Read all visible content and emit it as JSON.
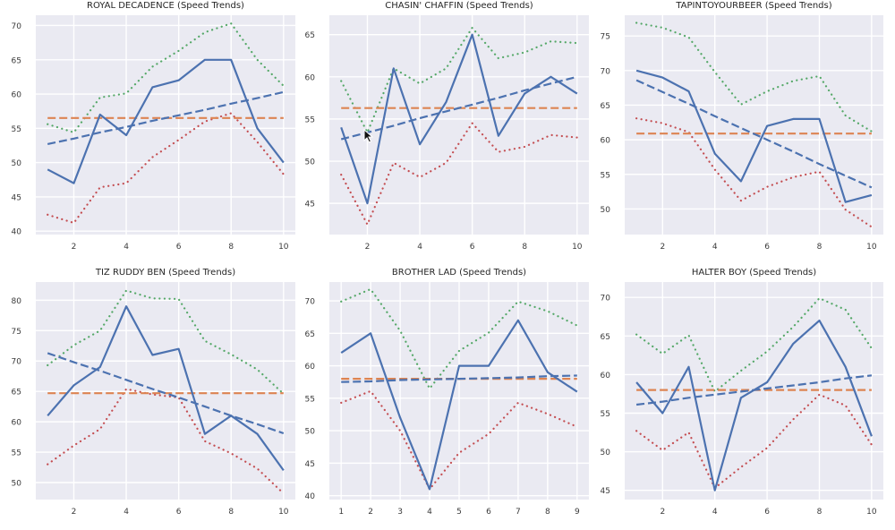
{
  "colors": {
    "plot_bg": "#eaeaf2",
    "grid": "#ffffff",
    "speed": "#4c72b0",
    "mean": "#dd8452",
    "trend": "#4c72b0",
    "upper": "#55a868",
    "lower": "#c44e52"
  },
  "chart_data": [
    {
      "type": "line",
      "title": "ROYAL DECADENCE (Speed Trends)",
      "x": [
        1,
        2,
        3,
        4,
        5,
        6,
        7,
        8,
        9,
        10
      ],
      "xticks": [
        2,
        4,
        6,
        8,
        10
      ],
      "yticks": [
        40,
        45,
        50,
        55,
        60,
        65,
        70
      ],
      "xlim": [
        0.55,
        10.45
      ],
      "ylim": [
        39.5,
        71.5
      ],
      "series": [
        {
          "name": "speed",
          "style": "solid",
          "values": [
            49,
            47,
            57,
            54,
            61,
            62,
            65,
            65,
            55,
            50
          ]
        },
        {
          "name": "mean",
          "style": "dashed",
          "values": [
            56.5,
            56.5,
            56.5,
            56.5,
            56.5,
            56.5,
            56.5,
            56.5,
            56.5,
            56.5
          ]
        },
        {
          "name": "trend",
          "style": "dashed",
          "values": [
            52.7,
            53.5,
            54.4,
            55.2,
            56.1,
            56.9,
            57.7,
            58.6,
            59.4,
            60.3
          ]
        },
        {
          "name": "upper",
          "style": "dotted",
          "values": [
            55.6,
            54.4,
            59.5,
            60.1,
            64.0,
            66.3,
            69.0,
            70.3,
            65.0,
            61.2
          ]
        },
        {
          "name": "lower",
          "style": "dotted",
          "values": [
            42.4,
            41.2,
            46.4,
            47.0,
            50.8,
            53.3,
            56.0,
            57.2,
            53.0,
            48.3
          ]
        }
      ]
    },
    {
      "type": "line",
      "title": "CHASIN' CHAFFIN (Speed Trends)",
      "x": [
        1,
        2,
        3,
        4,
        5,
        6,
        7,
        8,
        9,
        10
      ],
      "xticks": [
        2,
        4,
        6,
        8,
        10
      ],
      "yticks": [
        45,
        50,
        55,
        60,
        65
      ],
      "xlim": [
        0.55,
        10.45
      ],
      "ylim": [
        41.3,
        67.3
      ],
      "series": [
        {
          "name": "speed",
          "style": "solid",
          "values": [
            54,
            45,
            61,
            52,
            57,
            65,
            53,
            58,
            60,
            58
          ]
        },
        {
          "name": "mean",
          "style": "dashed",
          "values": [
            56.3,
            56.3,
            56.3,
            56.3,
            56.3,
            56.3,
            56.3,
            56.3,
            56.3,
            56.3
          ]
        },
        {
          "name": "trend",
          "style": "dashed",
          "values": [
            52.6,
            53.4,
            54.2,
            55.1,
            55.9,
            56.7,
            57.5,
            58.4,
            59.2,
            60.0
          ]
        },
        {
          "name": "upper",
          "style": "dotted",
          "values": [
            59.5,
            53.4,
            61.0,
            59.2,
            61.0,
            65.8,
            62.2,
            62.9,
            64.2,
            64.0
          ]
        },
        {
          "name": "lower",
          "style": "dotted",
          "values": [
            48.4,
            42.5,
            49.8,
            48.1,
            49.8,
            54.5,
            51.1,
            51.7,
            53.1,
            52.8
          ]
        }
      ]
    },
    {
      "type": "line",
      "title": "TAPINTOYOURBEER (Speed Trends)",
      "x": [
        1,
        2,
        3,
        4,
        5,
        6,
        7,
        8,
        9,
        10
      ],
      "xticks": [
        2,
        4,
        6,
        8,
        10
      ],
      "yticks": [
        50,
        55,
        60,
        65,
        70,
        75
      ],
      "xlim": [
        0.55,
        10.45
      ],
      "ylim": [
        46.3,
        78.0
      ],
      "series": [
        {
          "name": "speed",
          "style": "solid",
          "values": [
            70,
            69,
            67,
            58,
            54,
            62,
            63,
            63,
            51,
            52
          ]
        },
        {
          "name": "mean",
          "style": "dashed",
          "values": [
            60.9,
            60.9,
            60.9,
            60.9,
            60.9,
            60.9,
            60.9,
            60.9,
            60.9,
            60.9
          ]
        },
        {
          "name": "trend",
          "style": "dashed",
          "values": [
            68.6,
            66.9,
            65.2,
            63.4,
            61.7,
            60.0,
            58.3,
            56.5,
            54.8,
            53.1
          ]
        },
        {
          "name": "upper",
          "style": "dotted",
          "values": [
            76.9,
            76.2,
            74.8,
            69.8,
            65.1,
            67.0,
            68.5,
            69.2,
            63.5,
            61.2
          ]
        },
        {
          "name": "lower",
          "style": "dotted",
          "values": [
            63.1,
            62.4,
            61.1,
            55.7,
            51.2,
            53.2,
            54.6,
            55.4,
            49.9,
            47.4
          ]
        }
      ]
    },
    {
      "type": "line",
      "title": "TIZ RUDDY BEN (Speed Trends)",
      "x": [
        1,
        2,
        3,
        4,
        5,
        6,
        7,
        8,
        9,
        10
      ],
      "xticks": [
        2,
        4,
        6,
        8,
        10
      ],
      "yticks": [
        50,
        55,
        60,
        65,
        70,
        75,
        80
      ],
      "xlim": [
        0.55,
        10.45
      ],
      "ylim": [
        47.2,
        83.0
      ],
      "series": [
        {
          "name": "speed",
          "style": "solid",
          "values": [
            61,
            66,
            69,
            79,
            71,
            72,
            58,
            61,
            58,
            52
          ]
        },
        {
          "name": "mean",
          "style": "dashed",
          "values": [
            64.7,
            64.7,
            64.7,
            64.7,
            64.7,
            64.7,
            64.7,
            64.7,
            64.7,
            64.7
          ]
        },
        {
          "name": "trend",
          "style": "dashed",
          "values": [
            71.3,
            69.8,
            68.4,
            66.9,
            65.4,
            64.0,
            62.5,
            61.0,
            59.6,
            58.1
          ]
        },
        {
          "name": "upper",
          "style": "dotted",
          "values": [
            69.3,
            72.6,
            75.0,
            81.6,
            80.3,
            80.2,
            73.3,
            71.1,
            68.6,
            64.6
          ]
        },
        {
          "name": "lower",
          "style": "dotted",
          "values": [
            53.0,
            56.1,
            58.8,
            65.4,
            64.5,
            64.0,
            56.8,
            54.8,
            52.3,
            48.2
          ]
        }
      ]
    },
    {
      "type": "line",
      "title": "BROTHER LAD (Speed Trends)",
      "x": [
        1,
        2,
        3,
        4,
        5,
        6,
        7,
        8,
        9
      ],
      "xticks": [
        1,
        2,
        3,
        4,
        5,
        6,
        7,
        8,
        9
      ],
      "yticks": [
        40,
        45,
        50,
        55,
        60,
        65,
        70
      ],
      "xlim": [
        0.6,
        9.4
      ],
      "ylim": [
        39.4,
        72.9
      ],
      "series": [
        {
          "name": "speed",
          "style": "solid",
          "values": [
            62,
            65,
            52,
            41,
            60,
            60,
            67,
            59,
            56
          ]
        },
        {
          "name": "mean",
          "style": "dashed",
          "values": [
            58.0,
            58.0,
            58.0,
            58.0,
            58.0,
            58.0,
            58.0,
            58.0,
            58.0
          ]
        },
        {
          "name": "trend",
          "style": "dashed",
          "values": [
            57.5,
            57.6,
            57.8,
            57.9,
            58.0,
            58.1,
            58.2,
            58.4,
            58.5
          ]
        },
        {
          "name": "upper",
          "style": "dotted",
          "values": [
            69.9,
            71.8,
            65.4,
            56.5,
            62.3,
            65.1,
            69.9,
            68.4,
            66.2
          ]
        },
        {
          "name": "lower",
          "style": "dotted",
          "values": [
            54.3,
            56.1,
            50.0,
            41.0,
            46.6,
            49.5,
            54.3,
            52.6,
            50.6
          ]
        }
      ]
    },
    {
      "type": "line",
      "title": "HALTER BOY (Speed Trends)",
      "x": [
        1,
        2,
        3,
        4,
        5,
        6,
        7,
        8,
        9,
        10
      ],
      "xticks": [
        2,
        4,
        6,
        8,
        10
      ],
      "yticks": [
        45,
        50,
        55,
        60,
        65,
        70
      ],
      "xlim": [
        0.55,
        10.45
      ],
      "ylim": [
        43.8,
        72.0
      ],
      "series": [
        {
          "name": "speed",
          "style": "solid",
          "values": [
            59,
            55,
            61,
            45,
            57,
            59,
            64,
            67,
            61,
            52
          ]
        },
        {
          "name": "mean",
          "style": "dashed",
          "values": [
            58.0,
            58.0,
            58.0,
            58.0,
            58.0,
            58.0,
            58.0,
            58.0,
            58.0,
            58.0
          ]
        },
        {
          "name": "trend",
          "style": "dashed",
          "values": [
            56.1,
            56.5,
            57.0,
            57.4,
            57.8,
            58.2,
            58.6,
            59.0,
            59.5,
            59.9
          ]
        },
        {
          "name": "upper",
          "style": "dotted",
          "values": [
            65.2,
            62.7,
            65.1,
            57.8,
            60.5,
            63.0,
            66.2,
            69.9,
            68.4,
            63.4
          ]
        },
        {
          "name": "lower",
          "style": "dotted",
          "values": [
            52.7,
            50.2,
            52.5,
            45.3,
            48.0,
            50.5,
            54.2,
            57.4,
            56.0,
            50.9
          ]
        }
      ]
    }
  ]
}
